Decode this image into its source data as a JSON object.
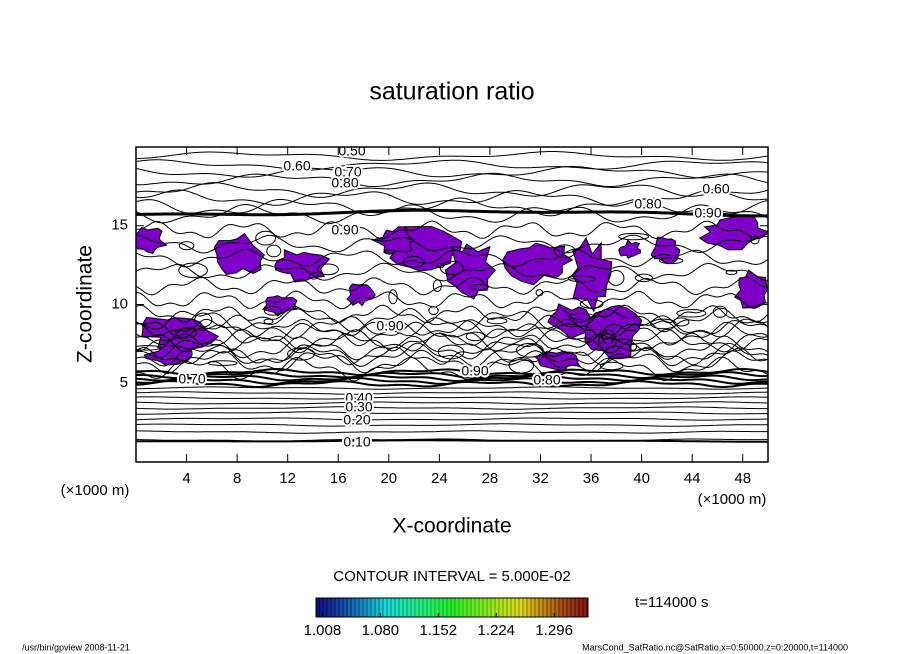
{
  "chart_data": {
    "type": "contour",
    "title": "saturation ratio",
    "x_label": "X-coordinate",
    "y_label": "Z-coordinate",
    "x_unit": "(×1000 m)",
    "y_unit": "(×1000 m)",
    "xlim": [
      0,
      50
    ],
    "ylim": [
      0,
      20
    ],
    "xticks": [
      4,
      8,
      12,
      16,
      20,
      24,
      28,
      32,
      36,
      40,
      44,
      48
    ],
    "yticks": [
      5,
      10,
      15
    ],
    "contour_labels": [
      "0.50",
      "0.60",
      "0.70",
      "0.80",
      "0.60",
      "0.80",
      "0.90",
      "0.90",
      "0.90",
      "0.70",
      "0.90",
      "0.80",
      "0.40",
      "0.30",
      "0.20",
      "0.10"
    ],
    "fill_color": "#7f00c8",
    "contour_interval": "CONTOUR INTERVAL = 5.000E-02",
    "time_label": "t=114000 s",
    "colorbar": {
      "lim": [
        1.0,
        1.338
      ],
      "ticks": [
        1.008,
        {
          "value": 1.08,
          "label": "1.080"
        },
        1.152,
        1.224,
        1.296
      ]
    },
    "footer_left": "/usr/bin/gpview  2008-11-21",
    "footer_right": "MarsCond_SatRatio.nc@SatRatio,x=0:50000,z=0:20000,t=114000"
  }
}
